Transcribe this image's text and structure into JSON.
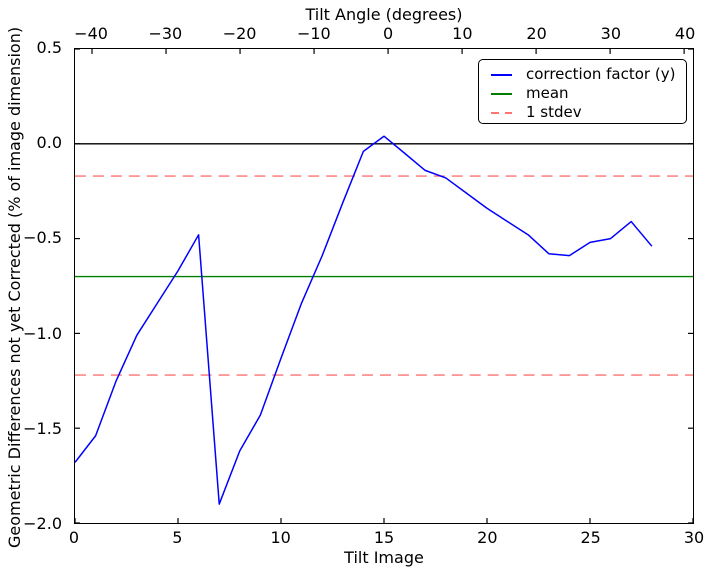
{
  "chart_data": {
    "type": "line",
    "title": "Tilt Angle (degrees)",
    "xlabel": "Tilt Image",
    "ylabel": "Geometric Differences not yet Corrected (% of image dimension)",
    "xlim": [
      0,
      30
    ],
    "ylim": [
      -2.0,
      0.5
    ],
    "grid": false,
    "background": "#ffffff",
    "x": [
      0,
      1,
      2,
      3,
      4,
      5,
      6,
      7,
      8,
      9,
      10,
      11,
      12,
      13,
      14,
      15,
      16,
      17,
      18,
      19,
      20,
      21,
      22,
      23,
      24,
      25,
      26,
      27,
      28
    ],
    "series": [
      {
        "name": "correction factor (y)",
        "color": "#0000ff",
        "style": "solid",
        "values": [
          -1.68,
          -1.54,
          -1.25,
          -1.01,
          -0.84,
          -0.67,
          -0.48,
          -1.9,
          -1.62,
          -1.43,
          -1.13,
          -0.84,
          -0.59,
          -0.31,
          -0.04,
          0.04,
          -0.05,
          -0.14,
          -0.18,
          -0.26,
          -0.34,
          -0.41,
          -0.48,
          -0.58,
          -0.59,
          -0.52,
          -0.5,
          -0.41,
          -0.54
        ]
      }
    ],
    "reference_lines": [
      {
        "name": "zero-line",
        "y": 0.0,
        "color": "#000000",
        "style": "solid",
        "opacity": 1
      },
      {
        "name": "1 stdev upper",
        "y": -0.17,
        "color": "#ff0000",
        "style": "dashed",
        "opacity": 0.55
      },
      {
        "name": "mean",
        "y": -0.7,
        "color": "#008000",
        "style": "solid",
        "opacity": 1
      },
      {
        "name": "1 stdev lower",
        "y": -1.22,
        "color": "#ff0000",
        "style": "dashed",
        "opacity": 0.55
      }
    ],
    "x_ticks": {
      "values": [
        0,
        5,
        10,
        15,
        20,
        25,
        30
      ],
      "labels": [
        "0",
        "5",
        "10",
        "15",
        "20",
        "25",
        "30"
      ]
    },
    "y_ticks": {
      "values": [
        0.5,
        0.0,
        -0.5,
        -1.0,
        -1.5,
        -2.0
      ],
      "labels": [
        "0.5",
        "0.0",
        "−0.5",
        "−1.0",
        "−1.5",
        "−2.0"
      ]
    },
    "top_axis": {
      "label": "Tilt Angle (degrees)",
      "range": [
        -42.3,
        41.2
      ],
      "tick_values": [
        -40,
        -30,
        -20,
        -10,
        0,
        10,
        20,
        30,
        40
      ],
      "tick_labels": [
        "−40",
        "−30",
        "−20",
        "−10",
        "0",
        "10",
        "20",
        "30",
        "40"
      ]
    },
    "legend": {
      "position": "upper right",
      "entries": [
        {
          "label": "correction factor (y)",
          "color": "#0000ff",
          "style": "solid",
          "opacity": 1
        },
        {
          "label": "mean",
          "color": "#008000",
          "style": "solid",
          "opacity": 1
        },
        {
          "label": "1 stdev",
          "color": "#ff0000",
          "style": "dashed",
          "opacity": 0.55
        }
      ]
    }
  }
}
